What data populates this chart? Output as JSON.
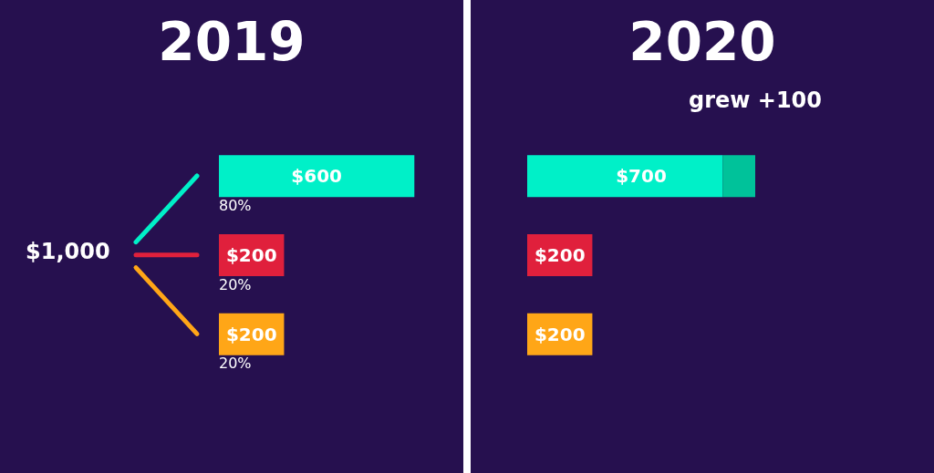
{
  "chart_data": [
    {
      "type": "bar",
      "title": "2019",
      "orientation": "horizontal",
      "categories": [
        null,
        null,
        null
      ],
      "values": [
        600,
        200,
        200
      ],
      "colors": [
        "#00f0c8",
        "#e0203c",
        "#ffa617"
      ],
      "value_labels": [
        "$600",
        "$200",
        "$200"
      ],
      "annotations": [
        "$1,000",
        "80%",
        "20%",
        "20%"
      ]
    },
    {
      "type": "bar",
      "title": "2020",
      "orientation": "horizontal",
      "stacked": true,
      "categories": [
        null,
        null,
        null
      ],
      "series": [
        {
          "values": [
            600,
            200,
            200
          ],
          "colors": [
            "#00f0c8",
            "#e0203c",
            "#ffa617"
          ],
          "value_labels": [
            null,
            "$200",
            "$200"
          ]
        },
        {
          "values": [
            100,
            null,
            null
          ],
          "color": "#00c29a"
        }
      ],
      "totals": [
        "$700",
        null,
        null
      ],
      "annotations": [
        "grew +100"
      ]
    }
  ]
}
